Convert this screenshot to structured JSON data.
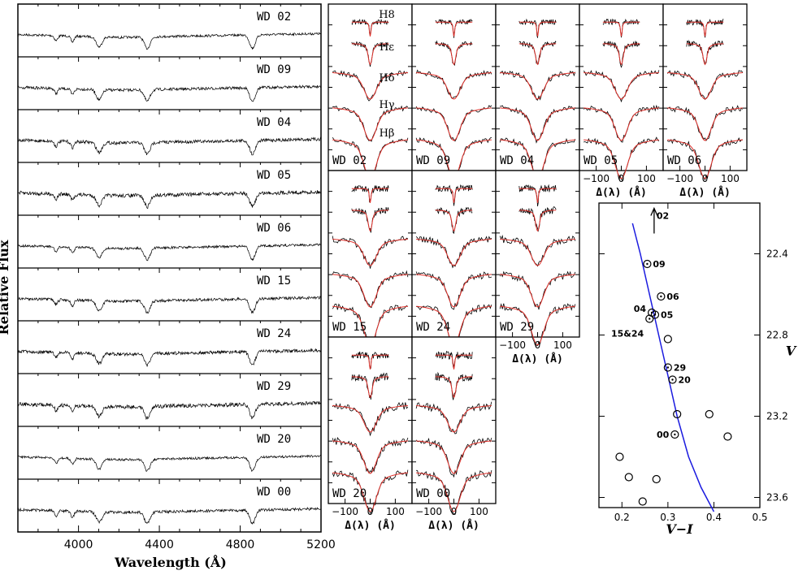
{
  "chart_data": [
    {
      "type": "line",
      "panel": "spectra",
      "xlabel": "Wavelength (Å)",
      "ylabel": "Relative Flux",
      "xlim": [
        3700,
        5200
      ],
      "xticks": [
        "4000",
        "4400",
        "4800",
        "5200"
      ],
      "spectra": [
        "WD 02",
        "WD 09",
        "WD 04",
        "WD 05",
        "WD 06",
        "WD 15",
        "WD 24",
        "WD 29",
        "WD 20",
        "WD 00"
      ],
      "absorption_lines_A": [
        3889,
        3970,
        4102,
        4340,
        4861
      ]
    },
    {
      "type": "line",
      "panel": "line_profile_fits",
      "xlabel": "Δ(λ) (Å)",
      "xticks": [
        "−100",
        "0",
        "100"
      ],
      "line_labels": [
        "H8",
        "Hε",
        "Hδ",
        "Hγ",
        "Hβ"
      ],
      "stars": [
        "WD 02",
        "WD 09",
        "WD 04",
        "WD 05",
        "WD 06",
        "WD 15",
        "WD 24",
        "WD 29",
        "WD 20",
        "WD 00"
      ],
      "observed_color": "#000000",
      "model_color": "#e0302a"
    },
    {
      "type": "scatter",
      "panel": "color_magnitude",
      "xlabel": "V−I",
      "ylabel": "V",
      "xlim": [
        0.15,
        0.5
      ],
      "ylim": [
        23.65,
        22.15
      ],
      "xticks": [
        0.2,
        0.3,
        0.4,
        0.5
      ],
      "yticks": [
        22.4,
        22.8,
        23.2,
        23.6
      ],
      "track_color": "#1a1adf",
      "track": [
        [
          0.223,
          22.25
        ],
        [
          0.24,
          22.4
        ],
        [
          0.26,
          22.6
        ],
        [
          0.28,
          22.8
        ],
        [
          0.3,
          23.0
        ],
        [
          0.32,
          23.2
        ],
        [
          0.345,
          23.4
        ],
        [
          0.372,
          23.55
        ],
        [
          0.4,
          23.67
        ]
      ],
      "labeled_points": [
        {
          "label": "02",
          "x": 0.27,
          "y": 22.2,
          "arrow": "up"
        },
        {
          "label": "09",
          "x": 0.255,
          "y": 22.45
        },
        {
          "label": "06",
          "x": 0.285,
          "y": 22.61
        },
        {
          "label": "04",
          "x": 0.265,
          "y": 22.69
        },
        {
          "label": "05",
          "x": 0.272,
          "y": 22.7
        },
        {
          "label": "15&24",
          "x": 0.26,
          "y": 22.72
        },
        {
          "label": "29",
          "x": 0.3,
          "y": 22.96
        },
        {
          "label": "20",
          "x": 0.31,
          "y": 23.02
        },
        {
          "label": "00",
          "x": 0.315,
          "y": 23.29
        }
      ],
      "other_points": [
        {
          "x": 0.3,
          "y": 22.82
        },
        {
          "x": 0.32,
          "y": 23.19
        },
        {
          "x": 0.39,
          "y": 23.19
        },
        {
          "x": 0.43,
          "y": 23.3
        },
        {
          "x": 0.195,
          "y": 23.4
        },
        {
          "x": 0.215,
          "y": 23.5
        },
        {
          "x": 0.275,
          "y": 23.51
        },
        {
          "x": 0.245,
          "y": 23.62
        }
      ]
    }
  ]
}
